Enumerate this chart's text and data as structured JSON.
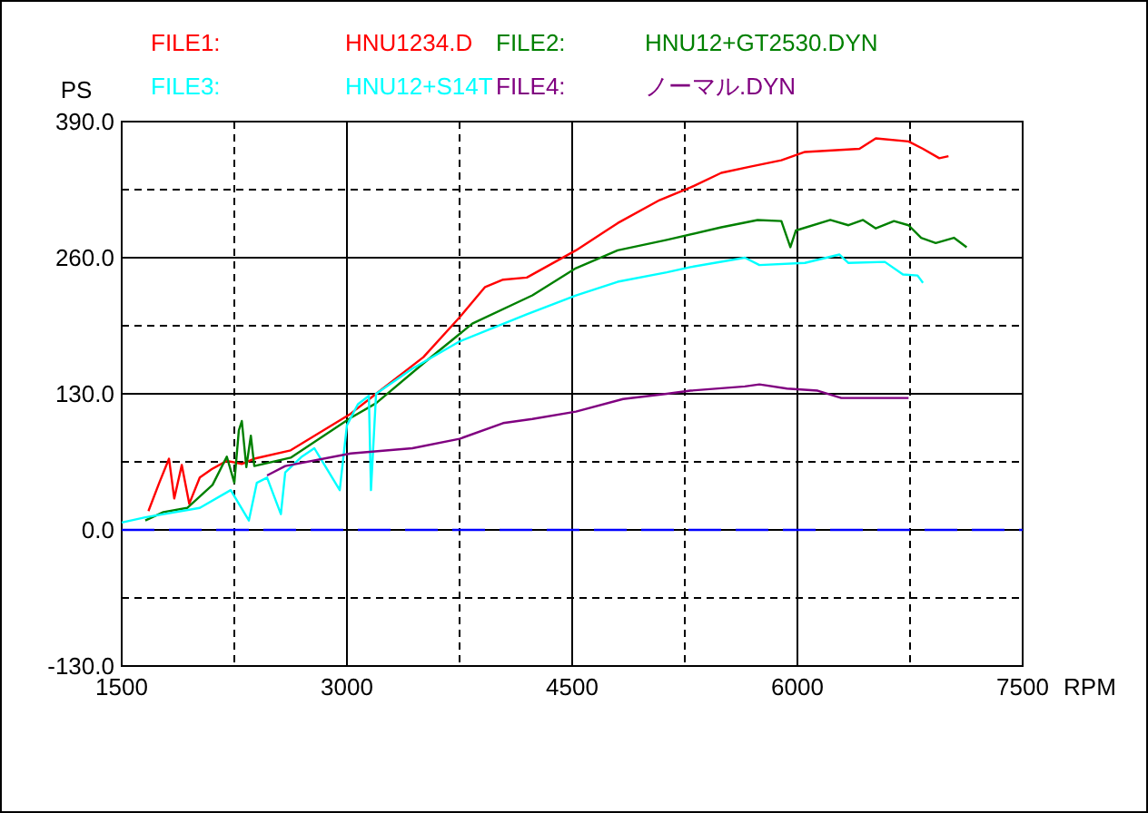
{
  "chart_data": {
    "type": "line",
    "xlabel": "RPM",
    "ylabel": "PS",
    "xlim": [
      1500,
      7500
    ],
    "ylim": [
      -130,
      390
    ],
    "xticks": [
      1500,
      {
        "value": 2250,
        "label": null
      },
      3000,
      {
        "value": 3750,
        "label": null
      },
      4500,
      {
        "value": 5250,
        "label": null
      },
      6000,
      {
        "value": 6750,
        "label": null
      },
      7500
    ],
    "yticks": [
      {
        "value": -130,
        "label": "-130.0"
      },
      {
        "value": -65,
        "label": null
      },
      {
        "value": 0,
        "label": "0.0"
      },
      {
        "value": 65,
        "label": null
      },
      {
        "value": 130,
        "label": "130.0"
      },
      {
        "value": 195,
        "label": null
      },
      {
        "value": 260,
        "label": "260.0"
      },
      {
        "value": 325,
        "label": null
      },
      {
        "value": 390,
        "label": "390.0"
      }
    ],
    "grid": true,
    "legend": "top",
    "line_style": "solid",
    "marker": "none",
    "ref_lines": [
      {
        "axis": "y",
        "value": 0,
        "color": "#0000ff",
        "line_style": "dashed"
      }
    ],
    "annotations": [
      "HNU1234.D",
      "HNU12+GT2530.DYN",
      "HNU12+S14T",
      "ノーマル.DYN"
    ],
    "series": [
      {
        "name": "FILE1:",
        "color": "#ff0000",
        "x": [
          1678,
          1750,
          1815,
          1850,
          1900,
          1950,
          2020,
          2100,
          2200,
          2300,
          2383,
          2625,
          3025,
          3194,
          3509,
          3750,
          3920,
          4040,
          4198,
          4525,
          4803,
          5082,
          5287,
          5493,
          5687,
          5893,
          6050,
          6413,
          6522,
          6740,
          6836,
          6945,
          7006
        ],
        "values": [
          18,
          45,
          68,
          30,
          62,
          25,
          50,
          58,
          66,
          63,
          68,
          76,
          111,
          130,
          165,
          203,
          232,
          239,
          241,
          267,
          293,
          315,
          327,
          341,
          347,
          353,
          361,
          364,
          374,
          371,
          364,
          355,
          357
        ]
      },
      {
        "name": "FILE2:",
        "color": "#008000",
        "x": [
          1657,
          1778,
          1936,
          2105,
          2200,
          2250,
          2280,
          2300,
          2330,
          2360,
          2383,
          2625,
          3025,
          3194,
          3509,
          3835,
          4235,
          4525,
          4803,
          5130,
          5493,
          5735,
          5893,
          5953,
          5990,
          6219,
          6340,
          6437,
          6522,
          6643,
          6740,
          6824,
          6921,
          7042,
          7127
        ],
        "values": [
          9,
          17,
          21,
          43,
          70,
          45,
          95,
          104,
          60,
          90,
          61,
          69,
          107,
          121,
          159,
          197,
          224,
          250,
          267,
          277,
          289,
          296,
          295,
          270,
          286,
          296,
          291,
          296,
          288,
          295,
          291,
          279,
          274,
          279,
          270
        ]
      },
      {
        "name": "FILE3:",
        "color": "#00ffff",
        "x": [
          1500,
          1657,
          2020,
          2226,
          2347,
          2400,
          2468,
          2560,
          2589,
          2700,
          2783,
          2952,
          3000,
          3073,
          3146,
          3160,
          3194,
          3436,
          3750,
          3992,
          4198,
          4525,
          4803,
          5130,
          5287,
          5650,
          5747,
          6050,
          6280,
          6340,
          6582,
          6703,
          6800,
          6836
        ],
        "values": [
          7,
          12,
          21,
          38,
          9,
          45,
          50,
          15,
          55,
          70,
          78,
          38,
          100,
          120,
          128,
          38,
          130,
          154,
          180,
          194,
          206,
          224,
          237,
          246,
          251,
          260,
          253,
          255,
          263,
          255,
          256,
          244,
          243,
          236
        ]
      },
      {
        "name": "FILE4:",
        "color": "#800080",
        "x": [
          2468,
          2589,
          3025,
          3436,
          3750,
          4040,
          4235,
          4525,
          4839,
          5130,
          5287,
          5650,
          5747,
          5930,
          6135,
          6292,
          6740
        ],
        "values": [
          52,
          61,
          73,
          78,
          87,
          102,
          106,
          113,
          125,
          130,
          133,
          137,
          139,
          135,
          133,
          126,
          126
        ]
      }
    ]
  }
}
